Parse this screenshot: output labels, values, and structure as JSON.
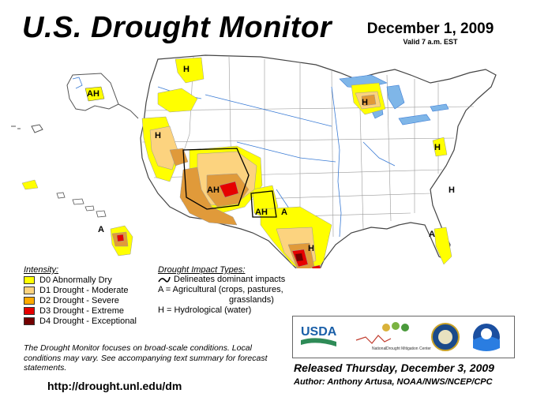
{
  "header": {
    "title": "U.S. Drought Monitor",
    "date": "December 1, 2009",
    "valid": "Valid 7 a.m. EST"
  },
  "map_labels": {
    "wa_h": "H",
    "alaska_ah": "AH",
    "oregon_h": "H",
    "arizona_ah": "AH",
    "newmexico_ah": "AH",
    "texas_a": "A",
    "texas_h": "H",
    "michigan_h": "H",
    "ny_h": "H",
    "va_h": "H",
    "florida_a": "A",
    "hawaii_a": "A"
  },
  "legend": {
    "intensity_title": "Intensity:",
    "items": [
      {
        "label": "D0 Abnormally Dry",
        "color": "#ffff00"
      },
      {
        "label": "D1 Drought - Moderate",
        "color": "#fcd37f"
      },
      {
        "label": "D2 Drought - Severe",
        "color": "#ffaa00"
      },
      {
        "label": "D3 Drought - Extreme",
        "color": "#e60000"
      },
      {
        "label": "D4 Drought - Exceptional",
        "color": "#730000"
      }
    ]
  },
  "impacts": {
    "title": "Drought Impact Types:",
    "delineates": "Delineates dominant impacts",
    "agricultural": "A = Agricultural (crops, pastures,",
    "agricultural2": "grasslands)",
    "hydrological": "H = Hydrological (water)"
  },
  "note": "The Drought Monitor focuses on broad-scale conditions. Local conditions may vary. See accompanying text summary for forecast statements.",
  "url": "http://drought.unl.edu/dm",
  "logos": {
    "usda": "USDA",
    "ndmc_line1": "National",
    "ndmc_line2": "Drought Mitigation Center"
  },
  "released": "Released Thursday, December 3, 2009",
  "author": "Author: Anthony Artusa, NOAA/NWS/NCEP/CPC"
}
